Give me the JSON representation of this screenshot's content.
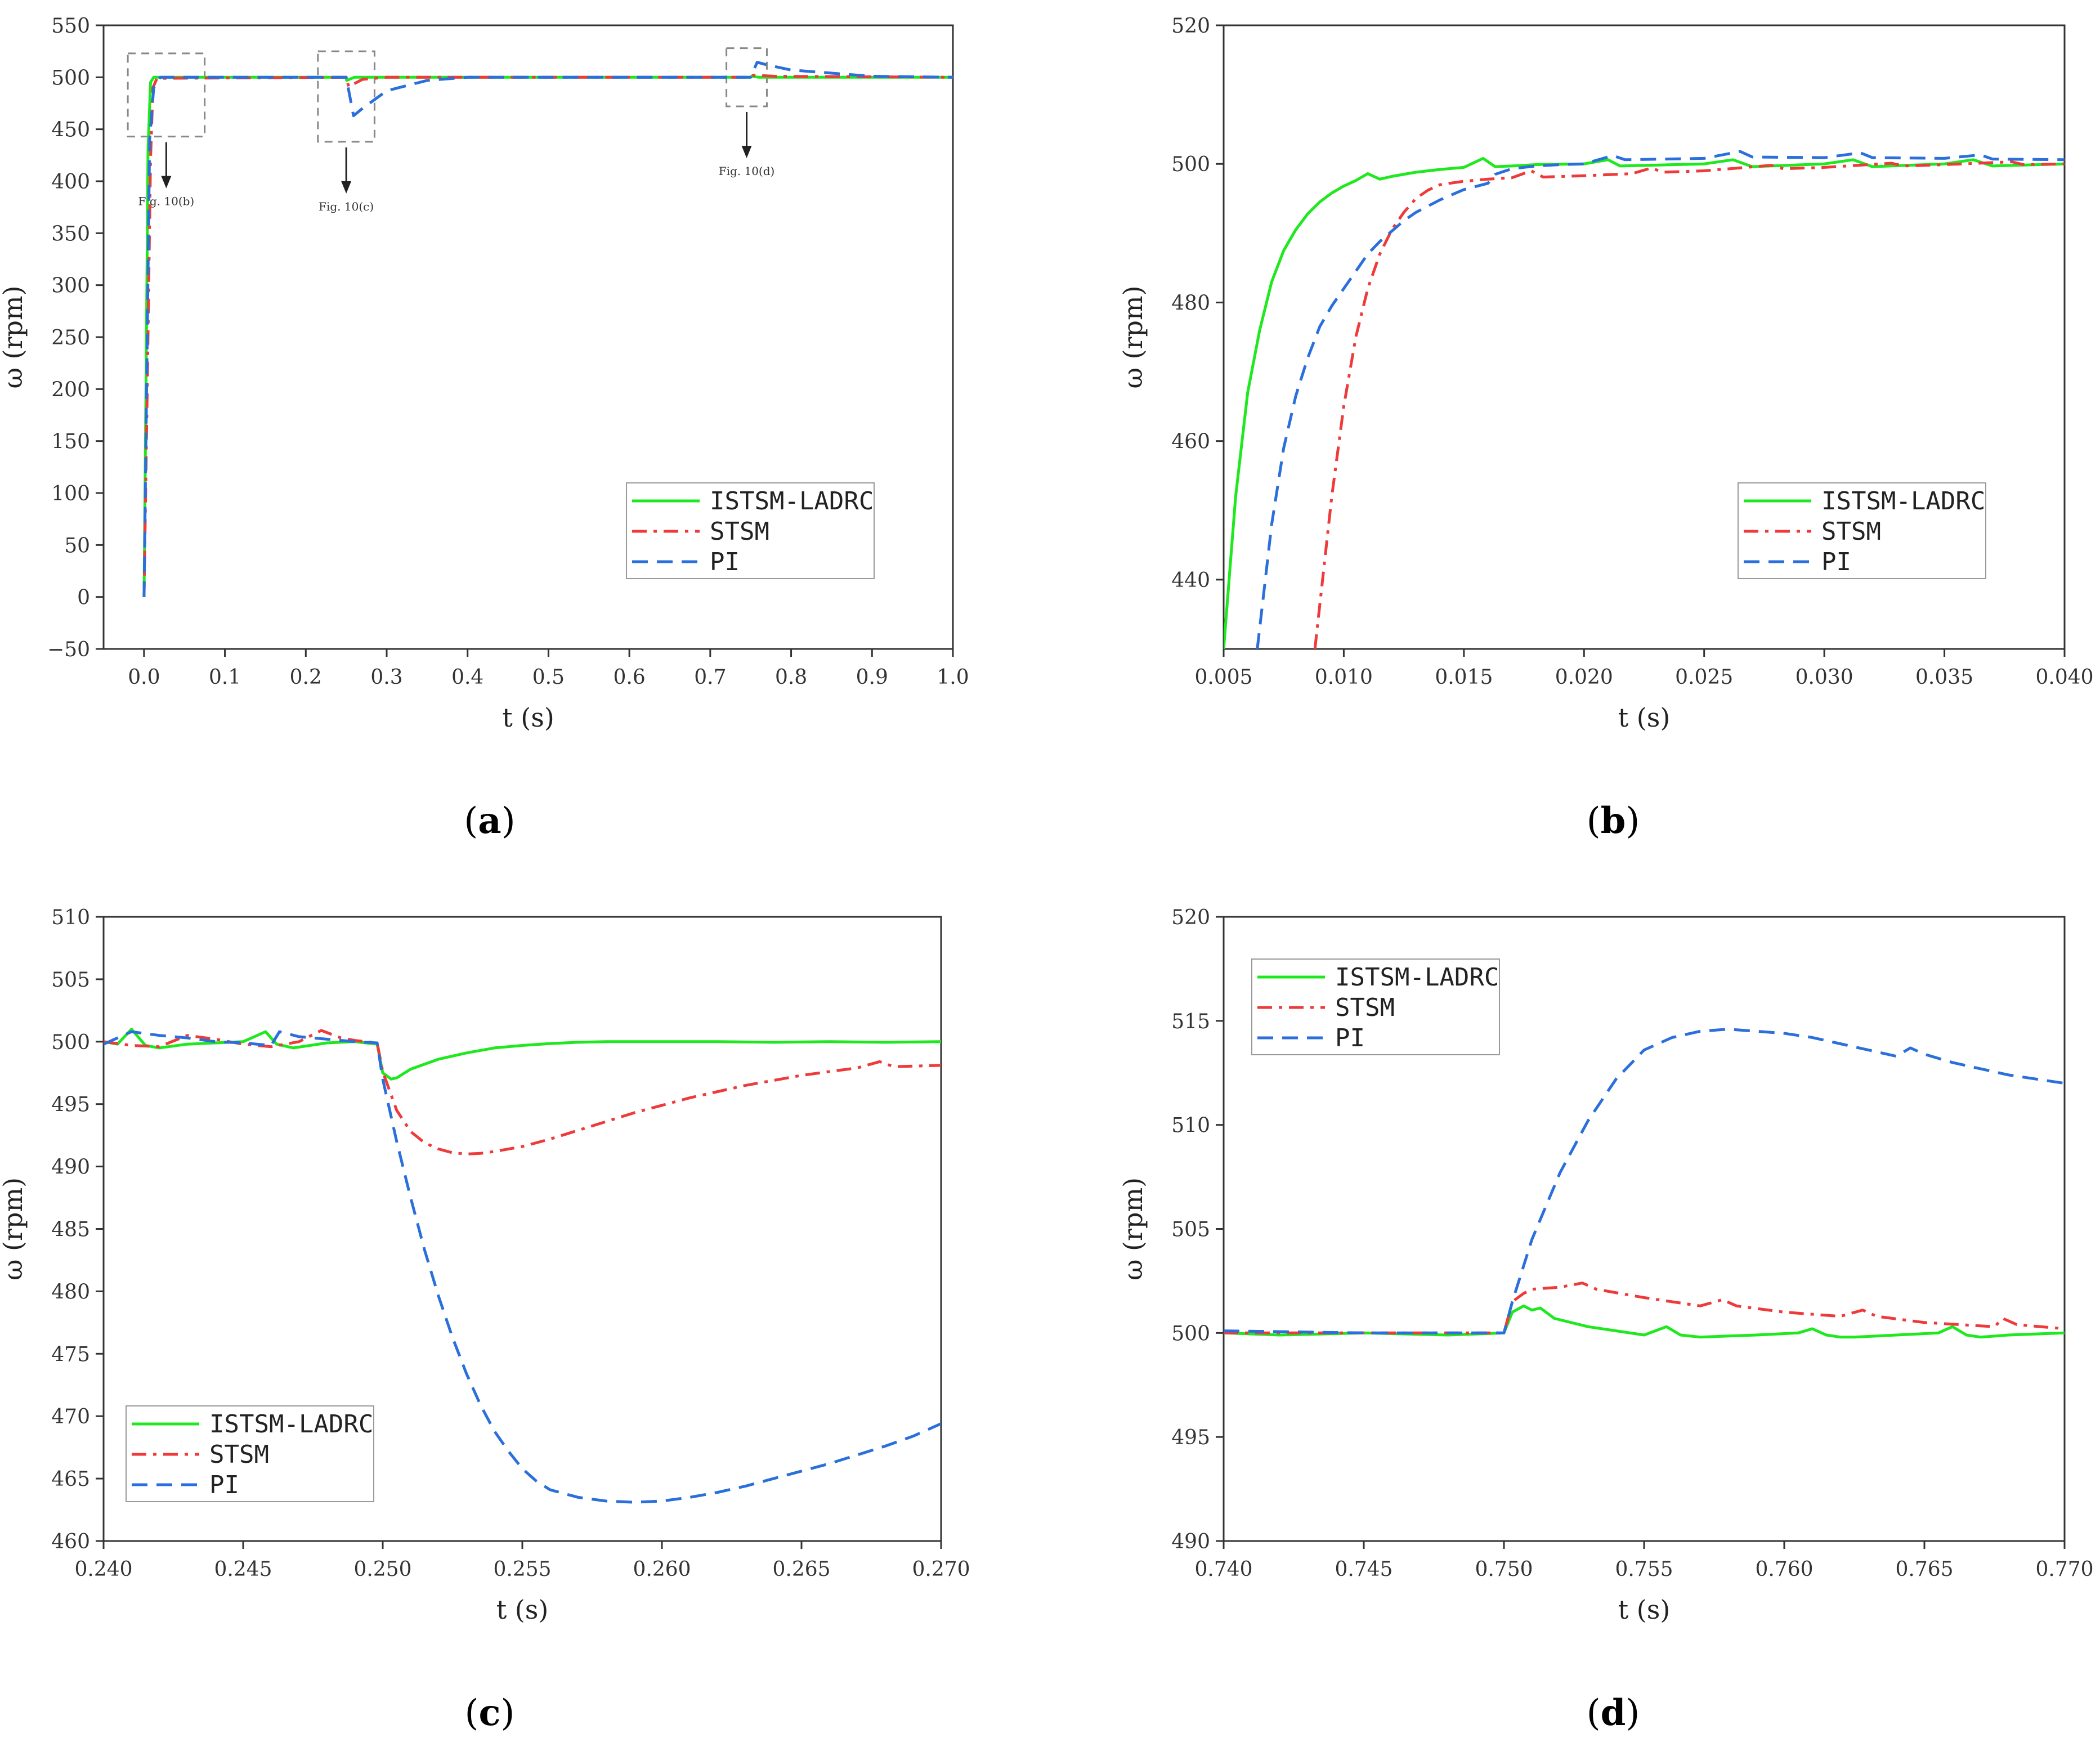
{
  "colors": {
    "ISTSM-LADRC": "#1ee81e",
    "STSM": "#ee3a3a",
    "PI": "#2a6fdb"
  },
  "chart_data": [
    {
      "type": "line",
      "panel": "a",
      "caption_letter": "a",
      "xlabel": "t (s)",
      "ylabel": "ω (rpm)",
      "xlim": [
        -0.05,
        1.0
      ],
      "ylim": [
        -50,
        550
      ],
      "xticks": [
        0.0,
        0.1,
        0.2,
        0.3,
        0.4,
        0.5,
        0.6,
        0.7,
        0.8,
        0.9,
        1.0
      ],
      "xtick_labels": [
        "0.0",
        "0.1",
        "0.2",
        "0.3",
        "0.4",
        "0.5",
        "0.6",
        "0.7",
        "0.8",
        "0.9",
        "1.0"
      ],
      "yticks": [
        -50,
        0,
        50,
        100,
        150,
        200,
        250,
        300,
        350,
        400,
        450,
        500,
        550
      ],
      "ytick_labels": [
        "−50",
        "0",
        "50",
        "100",
        "150",
        "200",
        "250",
        "300",
        "350",
        "400",
        "450",
        "500",
        "550"
      ],
      "legend_position": "bottom-right",
      "annotations": [
        {
          "label": "Fig. 10(b)",
          "box_x": [
            -0.02,
            0.075
          ],
          "box_y": [
            443,
            523
          ]
        },
        {
          "label": "Fig. 10(c)",
          "box_x": [
            0.215,
            0.285
          ],
          "box_y": [
            438,
            525
          ]
        },
        {
          "label": "Fig. 10(d)",
          "box_x": [
            0.72,
            0.77
          ],
          "box_y": [
            472,
            528
          ]
        }
      ],
      "series": [
        {
          "name": "ISTSM-LADRC",
          "style": "solid",
          "x": [
            0,
            0.003,
            0.005,
            0.008,
            0.012,
            0.25,
            0.2505,
            0.26,
            0.75,
            0.751,
            0.76,
            1.0
          ],
          "y": [
            0,
            250,
            430,
            495,
            500,
            500,
            497,
            500,
            500,
            501,
            500,
            500
          ]
        },
        {
          "name": "STSM",
          "style": "dashdot",
          "x": [
            0,
            0.004,
            0.008,
            0.011,
            0.016,
            0.25,
            0.253,
            0.27,
            0.3,
            0.75,
            0.753,
            0.78,
            1.0
          ],
          "y": [
            0,
            200,
            420,
            490,
            499,
            500,
            491,
            498,
            500,
            500,
            502,
            501,
            500
          ]
        },
        {
          "name": "PI",
          "style": "dashed",
          "x": [
            0,
            0.004,
            0.007,
            0.012,
            0.02,
            0.25,
            0.259,
            0.27,
            0.3,
            0.35,
            0.4,
            0.75,
            0.758,
            0.77,
            0.8,
            0.9,
            1.0
          ],
          "y": [
            0,
            250,
            440,
            490,
            500,
            500,
            463,
            470,
            487,
            497,
            500,
            500,
            514.5,
            512,
            507,
            501,
            500
          ]
        }
      ]
    },
    {
      "type": "line",
      "panel": "b",
      "caption_letter": "b",
      "xlabel": "t (s)",
      "ylabel": "ω (rpm)",
      "xlim": [
        0.005,
        0.04
      ],
      "ylim": [
        430,
        520
      ],
      "xticks": [
        0.005,
        0.01,
        0.015,
        0.02,
        0.025,
        0.03,
        0.035,
        0.04
      ],
      "xtick_labels": [
        "0.005",
        "0.010",
        "0.015",
        "0.020",
        "0.025",
        "0.030",
        "0.035",
        "0.040"
      ],
      "yticks": [
        440,
        460,
        480,
        500,
        520
      ],
      "ytick_labels": [
        "440",
        "460",
        "480",
        "500",
        "520"
      ],
      "legend_position": "bottom-right",
      "series": [
        {
          "name": "ISTSM-LADRC",
          "style": "solid",
          "x": [
            0.005,
            0.0055,
            0.006,
            0.0065,
            0.007,
            0.0075,
            0.008,
            0.0085,
            0.009,
            0.0095,
            0.01,
            0.0105,
            0.011,
            0.0115,
            0.012,
            0.013,
            0.014,
            0.015,
            0.0158,
            0.0163,
            0.017,
            0.018,
            0.02,
            0.021,
            0.0215,
            0.025,
            0.0262,
            0.027,
            0.03,
            0.0312,
            0.032,
            0.035,
            0.0362,
            0.037,
            0.04
          ],
          "y": [
            430,
            452,
            467,
            476,
            483,
            487.5,
            490.5,
            492.8,
            494.5,
            495.8,
            496.8,
            497.6,
            498.6,
            497.8,
            498.2,
            498.8,
            499.2,
            499.5,
            500.8,
            499.6,
            499.7,
            499.9,
            500.0,
            500.6,
            499.7,
            500.0,
            500.6,
            499.6,
            500.0,
            500.6,
            499.6,
            500.0,
            500.6,
            499.7,
            500.0
          ]
        },
        {
          "name": "STSM",
          "style": "dashdot",
          "x": [
            0.0088,
            0.0095,
            0.01,
            0.0105,
            0.011,
            0.0115,
            0.012,
            0.0125,
            0.013,
            0.0135,
            0.014,
            0.015,
            0.016,
            0.017,
            0.0178,
            0.0183,
            0.02,
            0.022,
            0.0228,
            0.0233,
            0.025,
            0.0278,
            0.0283,
            0.03,
            0.0328,
            0.0333,
            0.035,
            0.0378,
            0.0383,
            0.04
          ],
          "y": [
            430,
            452,
            465,
            475,
            482,
            487,
            490.5,
            493,
            495,
            496.2,
            497,
            497.5,
            497.8,
            498.0,
            499.0,
            498.1,
            498.3,
            498.6,
            499.4,
            498.8,
            499.0,
            499.8,
            499.3,
            499.5,
            500.1,
            499.7,
            499.9,
            500.3,
            499.9,
            500.0
          ]
        },
        {
          "name": "PI",
          "style": "dashed",
          "x": [
            0.0064,
            0.007,
            0.0075,
            0.008,
            0.0085,
            0.009,
            0.0095,
            0.01,
            0.0105,
            0.011,
            0.0115,
            0.012,
            0.0125,
            0.013,
            0.014,
            0.015,
            0.016,
            0.0163,
            0.017,
            0.018,
            0.019,
            0.02,
            0.0212,
            0.0217,
            0.025,
            0.0265,
            0.027,
            0.03,
            0.0315,
            0.032,
            0.035,
            0.0365,
            0.037,
            0.04
          ],
          "y": [
            430,
            448,
            459,
            466.5,
            472,
            476.5,
            479.5,
            482,
            484.5,
            487,
            488.8,
            490.3,
            491.8,
            493,
            494.8,
            496.3,
            497.2,
            498.5,
            499.3,
            499.7,
            499.9,
            500.0,
            501.2,
            500.6,
            500.8,
            501.8,
            501.0,
            500.9,
            501.6,
            500.9,
            500.8,
            501.3,
            500.7,
            500.6
          ]
        }
      ]
    },
    {
      "type": "line",
      "panel": "c",
      "caption_letter": "c",
      "xlabel": "t (s)",
      "ylabel": "ω (rpm)",
      "xlim": [
        0.24,
        0.27
      ],
      "ylim": [
        460,
        510
      ],
      "xticks": [
        0.24,
        0.245,
        0.25,
        0.255,
        0.26,
        0.265,
        0.27
      ],
      "xtick_labels": [
        "0.240",
        "0.245",
        "0.250",
        "0.255",
        "0.260",
        "0.265",
        "0.270"
      ],
      "yticks": [
        460,
        465,
        470,
        475,
        480,
        485,
        490,
        495,
        500,
        505,
        510
      ],
      "ytick_labels": [
        "460",
        "465",
        "470",
        "475",
        "480",
        "485",
        "490",
        "495",
        "500",
        "505",
        "510"
      ],
      "legend_position": "bottom-left",
      "series": [
        {
          "name": "ISTSM-LADRC",
          "style": "solid",
          "x": [
            0.24,
            0.2405,
            0.241,
            0.2415,
            0.242,
            0.243,
            0.245,
            0.2458,
            0.2462,
            0.2468,
            0.248,
            0.249,
            0.2498,
            0.25,
            0.2503,
            0.2505,
            0.251,
            0.252,
            0.253,
            0.254,
            0.255,
            0.256,
            0.257,
            0.258,
            0.26,
            0.262,
            0.264,
            0.266,
            0.268,
            0.27
          ],
          "y": [
            500,
            499.8,
            501,
            499.7,
            499.5,
            499.8,
            500.0,
            500.8,
            499.8,
            499.5,
            499.9,
            500.0,
            499.8,
            497.5,
            497,
            497.1,
            497.8,
            498.6,
            499.1,
            499.5,
            499.7,
            499.85,
            499.95,
            500.0,
            500.0,
            500.0,
            499.95,
            500.0,
            499.95,
            500.0
          ]
        },
        {
          "name": "STSM",
          "style": "dashdot",
          "x": [
            0.24,
            0.241,
            0.242,
            0.243,
            0.244,
            0.245,
            0.246,
            0.247,
            0.2478,
            0.2485,
            0.249,
            0.2498,
            0.25,
            0.2505,
            0.251,
            0.2515,
            0.252,
            0.2525,
            0.253,
            0.2535,
            0.254,
            0.255,
            0.256,
            0.257,
            0.258,
            0.259,
            0.26,
            0.261,
            0.262,
            0.263,
            0.264,
            0.265,
            0.266,
            0.267,
            0.2678,
            0.2683,
            0.27
          ],
          "y": [
            500,
            499.7,
            499.6,
            500.5,
            500.2,
            499.8,
            499.6,
            500.0,
            500.9,
            500.3,
            500.1,
            499.9,
            497.6,
            494.5,
            492.8,
            491.9,
            491.4,
            491.1,
            491.0,
            491.05,
            491.2,
            491.6,
            492.2,
            492.9,
            493.6,
            494.3,
            494.9,
            495.5,
            496.0,
            496.5,
            496.9,
            497.3,
            497.6,
            497.9,
            498.4,
            498.0,
            498.1
          ]
        },
        {
          "name": "PI",
          "style": "dashed",
          "x": [
            0.24,
            0.241,
            0.242,
            0.243,
            0.244,
            0.245,
            0.246,
            0.2463,
            0.247,
            0.248,
            0.249,
            0.2498,
            0.25,
            0.2505,
            0.251,
            0.2515,
            0.252,
            0.2525,
            0.253,
            0.2535,
            0.254,
            0.2545,
            0.255,
            0.2555,
            0.256,
            0.257,
            0.258,
            0.259,
            0.26,
            0.261,
            0.262,
            0.263,
            0.264,
            0.265,
            0.266,
            0.267,
            0.268,
            0.269,
            0.27
          ],
          "y": [
            499.8,
            500.8,
            500.5,
            500.3,
            500.0,
            499.9,
            499.7,
            500.8,
            500.4,
            500.2,
            500.0,
            499.9,
            497,
            492,
            487.5,
            483.3,
            479.6,
            476.3,
            473.4,
            470.9,
            468.8,
            467.2,
            465.8,
            464.8,
            464.1,
            463.5,
            463.2,
            463.1,
            463.2,
            463.5,
            463.9,
            464.4,
            465.0,
            465.6,
            466.2,
            466.9,
            467.6,
            468.4,
            469.4
          ]
        }
      ]
    },
    {
      "type": "line",
      "panel": "d",
      "caption_letter": "d",
      "xlabel": "t (s)",
      "ylabel": "ω (rpm)",
      "xlim": [
        0.74,
        0.77
      ],
      "ylim": [
        490,
        520
      ],
      "xticks": [
        0.74,
        0.745,
        0.75,
        0.755,
        0.76,
        0.765,
        0.77
      ],
      "xtick_labels": [
        "0.740",
        "0.745",
        "0.750",
        "0.755",
        "0.760",
        "0.765",
        "0.770"
      ],
      "yticks": [
        490,
        495,
        500,
        505,
        510,
        515,
        520
      ],
      "ytick_labels": [
        "490",
        "495",
        "500",
        "505",
        "510",
        "515",
        "520"
      ],
      "legend_position": "top-left",
      "series": [
        {
          "name": "ISTSM-LADRC",
          "style": "solid",
          "x": [
            0.74,
            0.742,
            0.745,
            0.748,
            0.75,
            0.7503,
            0.7507,
            0.751,
            0.7513,
            0.7518,
            0.753,
            0.755,
            0.7558,
            0.7563,
            0.757,
            0.759,
            0.7605,
            0.761,
            0.7615,
            0.762,
            0.7625,
            0.764,
            0.7655,
            0.766,
            0.7665,
            0.767,
            0.768,
            0.77
          ],
          "y": [
            500,
            499.9,
            500.0,
            499.9,
            500.0,
            501.0,
            501.3,
            501.1,
            501.2,
            500.7,
            500.3,
            499.9,
            500.3,
            499.9,
            499.8,
            499.9,
            500.0,
            500.2,
            499.9,
            499.8,
            499.8,
            499.9,
            500.0,
            500.3,
            499.9,
            499.8,
            499.9,
            500.0
          ]
        },
        {
          "name": "STSM",
          "style": "dashdot",
          "x": [
            0.74,
            0.745,
            0.75,
            0.7503,
            0.7507,
            0.751,
            0.752,
            0.7528,
            0.7533,
            0.755,
            0.757,
            0.7578,
            0.7583,
            0.76,
            0.762,
            0.7628,
            0.7633,
            0.765,
            0.7675,
            0.7678,
            0.7683,
            0.77
          ],
          "y": [
            500,
            500.0,
            500.0,
            501.5,
            501.9,
            502.1,
            502.2,
            502.4,
            502.1,
            501.7,
            501.3,
            501.6,
            501.3,
            501.0,
            500.8,
            501.1,
            500.8,
            500.5,
            500.3,
            500.7,
            500.4,
            500.2
          ]
        },
        {
          "name": "PI",
          "style": "dashed",
          "x": [
            0.74,
            0.745,
            0.75,
            0.7503,
            0.751,
            0.752,
            0.753,
            0.754,
            0.755,
            0.756,
            0.757,
            0.758,
            0.759,
            0.76,
            0.761,
            0.762,
            0.763,
            0.764,
            0.7645,
            0.765,
            0.766,
            0.767,
            0.768,
            0.769,
            0.77
          ],
          "y": [
            500.1,
            500.0,
            500.0,
            501.5,
            504.5,
            507.7,
            510.2,
            512.2,
            513.6,
            514.2,
            514.5,
            514.6,
            514.5,
            514.4,
            514.2,
            513.9,
            513.6,
            513.3,
            513.7,
            513.4,
            513.0,
            512.7,
            512.4,
            512.2,
            512.0
          ]
        }
      ]
    }
  ]
}
